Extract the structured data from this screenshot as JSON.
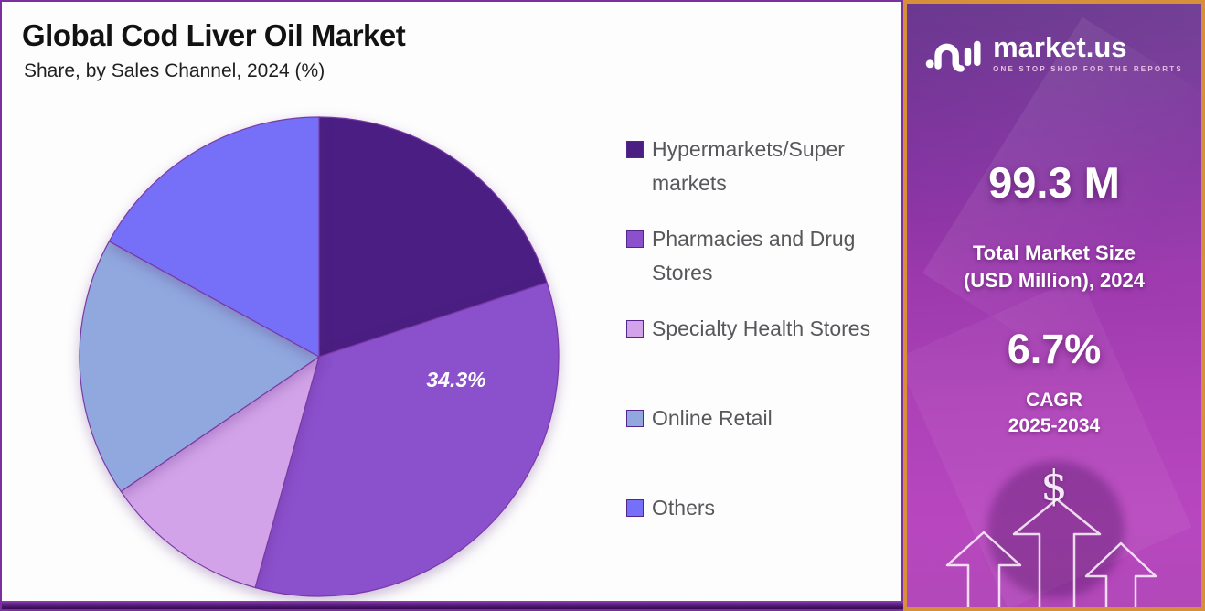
{
  "header": {
    "title": "Global Cod Liver Oil Market",
    "subtitle": "Share, by Sales Channel, 2024 (%)"
  },
  "chart_data": {
    "type": "pie",
    "title": "Global Cod Liver Oil Market Share, by Sales Channel, 2024 (%)",
    "unit": "%",
    "legend_position": "right",
    "direction": "clockwise",
    "start_angle": "12 o'clock",
    "value_label": {
      "text": "34.3%",
      "slice_index": 1
    },
    "slices": [
      {
        "label": "Hypermarkets/Super markets",
        "value": 20.0,
        "estimated": true,
        "color": "#4a1e82"
      },
      {
        "label": "Pharmacies and Drug Stores",
        "value": 34.3,
        "estimated": false,
        "color": "#8b50cc"
      },
      {
        "label": "Specialty Health Stores",
        "value": 11.2,
        "estimated": true,
        "color": "#d2a3e8"
      },
      {
        "label": "Online Retail",
        "value": 17.5,
        "estimated": true,
        "color": "#90a8de"
      },
      {
        "label": "Others",
        "value": 17.0,
        "estimated": true,
        "color": "#766ff7"
      }
    ]
  },
  "sidebar": {
    "logo": {
      "brand": "market.us",
      "tagline": "ONE STOP SHOP FOR THE REPORTS"
    },
    "market_size": {
      "value": "99.3 M",
      "label_line1": "Total Market Size",
      "label_line2": "(USD Million), 2024"
    },
    "cagr": {
      "value": "6.7%",
      "label_line1": "CAGR",
      "label_line2": "2025-2034"
    },
    "dollar_symbol": "$"
  },
  "colors": {
    "panel_border": "#7c2f9f",
    "sidebar_border": "#d88f3a",
    "sidebar_gradient_top": "#5f2a87",
    "sidebar_gradient_bottom": "#b847bf",
    "pie_stroke": "#7a3aa6",
    "legend_text": "#58585c",
    "title_text": "#121212"
  }
}
